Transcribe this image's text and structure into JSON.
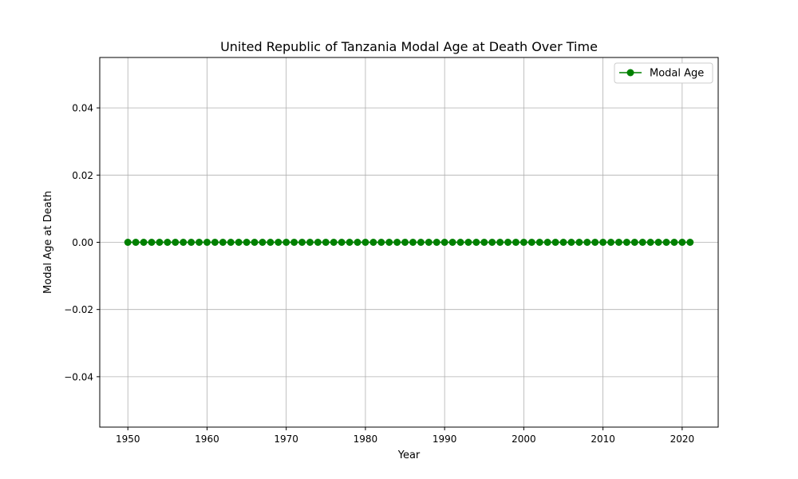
{
  "chart_data": {
    "type": "line",
    "title": "United Republic of Tanzania Modal Age at Death Over Time",
    "xlabel": "Year",
    "ylabel": "Modal Age at Death",
    "xlim": [
      1946.45,
      2024.55
    ],
    "ylim": [
      -0.055,
      0.055
    ],
    "xticks": [
      1950,
      1960,
      1970,
      1980,
      1990,
      2000,
      2010,
      2020
    ],
    "xtick_labels": [
      "1950",
      "1960",
      "1970",
      "1980",
      "1990",
      "2000",
      "2010",
      "2020"
    ],
    "yticks": [
      0.04,
      0.02,
      0.0,
      -0.02,
      -0.04
    ],
    "ytick_labels": [
      "0.04",
      "0.02",
      "0.00",
      "−0.02",
      "−0.04"
    ],
    "grid": true,
    "legend_position": "upper right",
    "series": [
      {
        "name": "Modal Age",
        "color": "#008000",
        "marker": "circle",
        "x": [
          1950,
          1951,
          1952,
          1953,
          1954,
          1955,
          1956,
          1957,
          1958,
          1959,
          1960,
          1961,
          1962,
          1963,
          1964,
          1965,
          1966,
          1967,
          1968,
          1969,
          1970,
          1971,
          1972,
          1973,
          1974,
          1975,
          1976,
          1977,
          1978,
          1979,
          1980,
          1981,
          1982,
          1983,
          1984,
          1985,
          1986,
          1987,
          1988,
          1989,
          1990,
          1991,
          1992,
          1993,
          1994,
          1995,
          1996,
          1997,
          1998,
          1999,
          2000,
          2001,
          2002,
          2003,
          2004,
          2005,
          2006,
          2007,
          2008,
          2009,
          2010,
          2011,
          2012,
          2013,
          2014,
          2015,
          2016,
          2017,
          2018,
          2019,
          2020,
          2021
        ],
        "y": [
          0,
          0,
          0,
          0,
          0,
          0,
          0,
          0,
          0,
          0,
          0,
          0,
          0,
          0,
          0,
          0,
          0,
          0,
          0,
          0,
          0,
          0,
          0,
          0,
          0,
          0,
          0,
          0,
          0,
          0,
          0,
          0,
          0,
          0,
          0,
          0,
          0,
          0,
          0,
          0,
          0,
          0,
          0,
          0,
          0,
          0,
          0,
          0,
          0,
          0,
          0,
          0,
          0,
          0,
          0,
          0,
          0,
          0,
          0,
          0,
          0,
          0,
          0,
          0,
          0,
          0,
          0,
          0,
          0,
          0,
          0,
          0
        ]
      }
    ]
  }
}
